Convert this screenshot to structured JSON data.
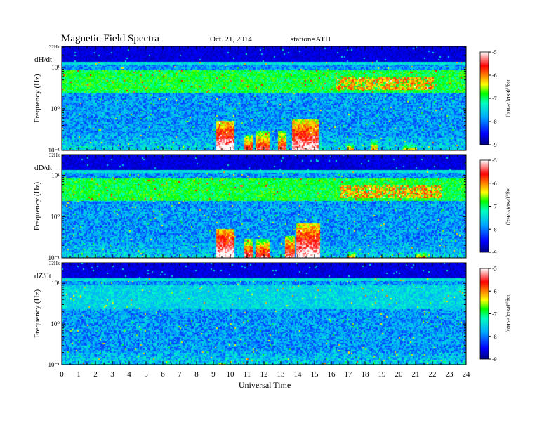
{
  "header": {
    "title": "Magnetic  Field  Spectra",
    "date": "Oct. 21, 2014",
    "station": "station=ATH"
  },
  "chart_data": {
    "type": "heatmap",
    "xlabel": "Universal Time",
    "x_ticks": [
      "0",
      "1",
      "2",
      "3",
      "4",
      "5",
      "6",
      "7",
      "8",
      "9",
      "10",
      "11",
      "12",
      "13",
      "14",
      "15",
      "16",
      "17",
      "18",
      "19",
      "20",
      "21",
      "22",
      "23",
      "24"
    ],
    "xlim": [
      0,
      24
    ],
    "y_scale": "log",
    "ylabel": "Frequency  (Hz)",
    "y_top_label": "32Hz",
    "y_tick_labels": [
      "10¹",
      "10⁰",
      "10⁻¹"
    ],
    "colorbar": {
      "label": "log₁₀(PSD(V²/Hz))",
      "ticks": [
        "-5",
        "-6",
        "-7",
        "-8",
        "-9"
      ],
      "range": [
        -9,
        -5
      ]
    },
    "panels": [
      {
        "label": "dH/dt",
        "events": [
          {
            "start": 9.1,
            "end": 10.2,
            "fmax": 0.55,
            "level": -6.0
          },
          {
            "start": 10.8,
            "end": 11.3,
            "fmax": 0.25,
            "level": -6.6
          },
          {
            "start": 11.5,
            "end": 12.3,
            "fmax": 0.3,
            "level": -6.5
          },
          {
            "start": 12.8,
            "end": 13.3,
            "fmax": 0.3,
            "level": -6.5
          },
          {
            "start": 13.6,
            "end": 15.2,
            "fmax": 0.6,
            "level": -6.1
          },
          {
            "start": 16.9,
            "end": 17.3,
            "fmax": 0.15,
            "level": -7.0
          },
          {
            "start": 18.3,
            "end": 18.7,
            "fmax": 0.2,
            "level": -7.0
          },
          {
            "start": 20.2,
            "end": 21.0,
            "fmax": 0.15,
            "level": -7.2
          }
        ],
        "pc1_band": {
          "start": 16.2,
          "end": 22.0,
          "fmin": 3.0,
          "fmax": 6.0
        }
      },
      {
        "label": "dD/dt",
        "events": [
          {
            "start": 9.1,
            "end": 10.2,
            "fmax": 0.5,
            "level": -5.9
          },
          {
            "start": 10.8,
            "end": 11.3,
            "fmax": 0.3,
            "level": -6.4
          },
          {
            "start": 11.5,
            "end": 12.3,
            "fmax": 0.3,
            "level": -6.5
          },
          {
            "start": 13.2,
            "end": 13.8,
            "fmax": 0.35,
            "level": -6.3
          },
          {
            "start": 13.9,
            "end": 15.3,
            "fmax": 0.7,
            "level": -6.0
          },
          {
            "start": 17.0,
            "end": 17.4,
            "fmax": 0.15,
            "level": -7.0
          },
          {
            "start": 21.0,
            "end": 21.6,
            "fmax": 0.15,
            "level": -7.1
          }
        ],
        "pc1_band": {
          "start": 16.5,
          "end": 22.5,
          "fmin": 3.0,
          "fmax": 6.0
        }
      },
      {
        "label": "dZ/dt",
        "events": [
          {
            "start": 9.2,
            "end": 9.6,
            "fmax": 0.12,
            "level": -7.0
          }
        ],
        "pc1_band": null
      }
    ]
  }
}
